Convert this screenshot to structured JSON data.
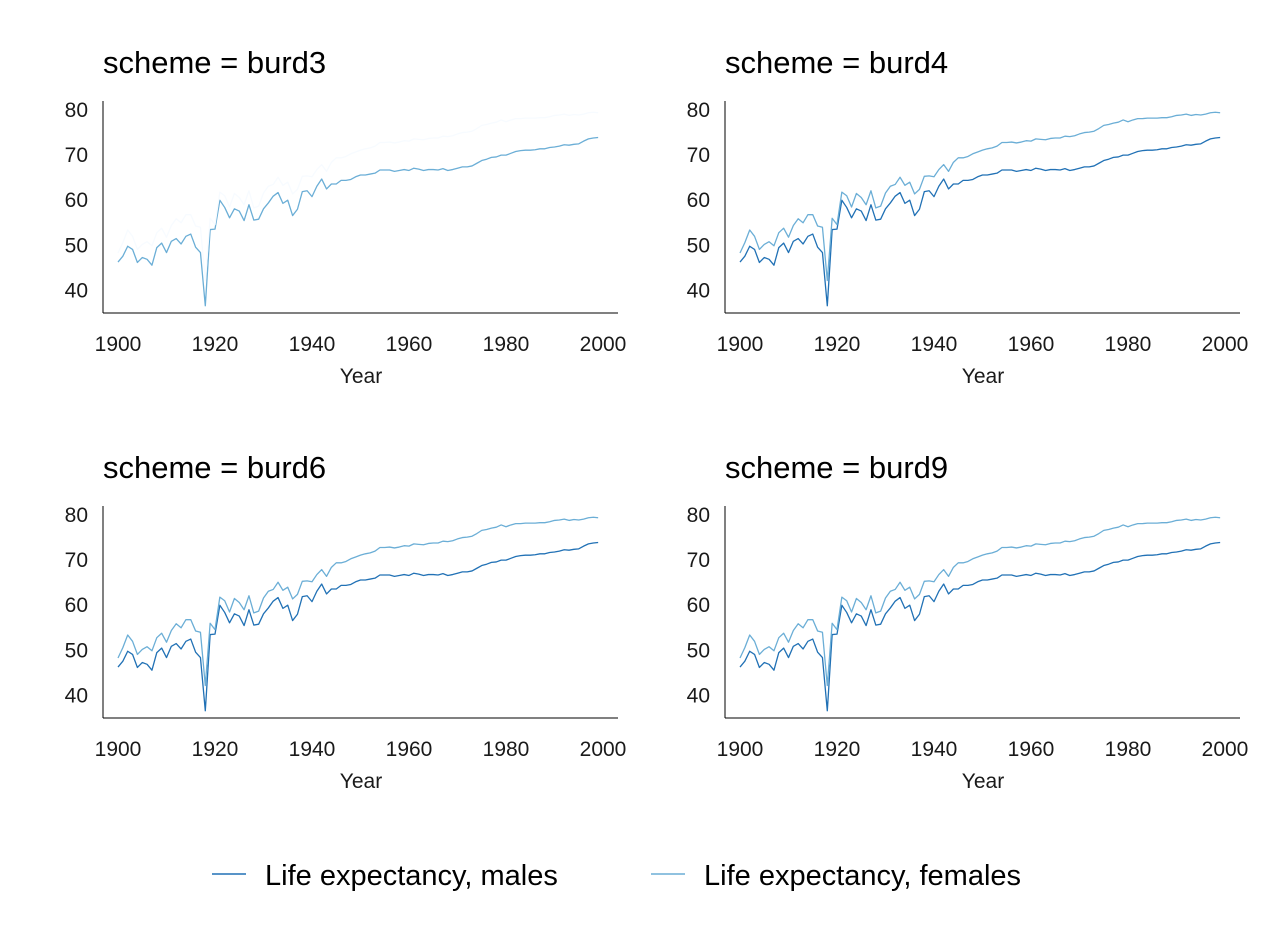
{
  "chart_data": [
    {
      "type": "line",
      "title": "scheme = burd3",
      "xlabel": "Year",
      "ylabel": "",
      "xlim": [
        1900,
        2000
      ],
      "ylim": [
        35,
        82
      ],
      "xticks": [
        1900,
        1920,
        1940,
        1960,
        1980,
        2000
      ],
      "yticks": [
        40,
        50,
        60,
        70,
        80
      ],
      "series_colors": [
        "#6baed6",
        "#f7fbff"
      ]
    },
    {
      "type": "line",
      "title": "scheme = burd4",
      "xlabel": "Year",
      "ylabel": "",
      "xlim": [
        1900,
        2000
      ],
      "ylim": [
        35,
        82
      ],
      "xticks": [
        1900,
        1920,
        1940,
        1960,
        1980,
        2000
      ],
      "yticks": [
        40,
        50,
        60,
        70,
        80
      ],
      "series_colors": [
        "#2171b5",
        "#6baed6"
      ]
    },
    {
      "type": "line",
      "title": "scheme = burd6",
      "xlabel": "Year",
      "ylabel": "",
      "xlim": [
        1900,
        2000
      ],
      "ylim": [
        35,
        82
      ],
      "xticks": [
        1900,
        1920,
        1940,
        1960,
        1980,
        2000
      ],
      "yticks": [
        40,
        50,
        60,
        70,
        80
      ],
      "series_colors": [
        "#2171b5",
        "#6baed6"
      ]
    },
    {
      "type": "line",
      "title": "scheme = burd9",
      "xlabel": "Year",
      "ylabel": "",
      "xlim": [
        1900,
        2000
      ],
      "ylim": [
        35,
        82
      ],
      "xticks": [
        1900,
        1920,
        1940,
        1960,
        1980,
        2000
      ],
      "yticks": [
        40,
        50,
        60,
        70,
        80
      ],
      "series_colors": [
        "#2171b5",
        "#6baed6"
      ]
    }
  ],
  "shared_series": {
    "x": [
      1900,
      1901,
      1902,
      1903,
      1904,
      1905,
      1906,
      1907,
      1908,
      1909,
      1910,
      1911,
      1912,
      1913,
      1914,
      1915,
      1916,
      1917,
      1918,
      1919,
      1920,
      1921,
      1922,
      1923,
      1924,
      1925,
      1926,
      1927,
      1928,
      1929,
      1930,
      1931,
      1932,
      1933,
      1934,
      1935,
      1936,
      1937,
      1938,
      1939,
      1940,
      1941,
      1942,
      1943,
      1944,
      1945,
      1946,
      1947,
      1948,
      1949,
      1950,
      1951,
      1952,
      1953,
      1954,
      1955,
      1956,
      1957,
      1958,
      1959,
      1960,
      1961,
      1962,
      1963,
      1964,
      1965,
      1966,
      1967,
      1968,
      1969,
      1970,
      1971,
      1972,
      1973,
      1974,
      1975,
      1976,
      1977,
      1978,
      1979,
      1980,
      1981,
      1982,
      1983,
      1984,
      1985,
      1986,
      1987,
      1988,
      1989,
      1990,
      1991,
      1992,
      1993,
      1994,
      1995,
      1996,
      1997,
      1998,
      1999
    ],
    "series": [
      {
        "name": "Life expectancy, males",
        "values": [
          46.3,
          47.6,
          49.8,
          49.1,
          46.2,
          47.3,
          46.9,
          45.6,
          49.5,
          50.5,
          48.4,
          50.9,
          51.5,
          50.3,
          52.0,
          52.5,
          49.6,
          48.4,
          36.6,
          53.5,
          53.6,
          60.0,
          58.4,
          56.1,
          58.1,
          57.6,
          55.5,
          59.0,
          55.6,
          55.8,
          58.1,
          59.4,
          60.9,
          61.7,
          59.3,
          60.0,
          56.6,
          58.0,
          61.9,
          62.1,
          60.8,
          63.1,
          64.7,
          62.5,
          63.6,
          63.6,
          64.4,
          64.4,
          64.6,
          65.2,
          65.6,
          65.6,
          65.8,
          66.0,
          66.7,
          66.7,
          66.7,
          66.4,
          66.6,
          66.8,
          66.6,
          67.1,
          66.9,
          66.6,
          66.8,
          66.8,
          66.7,
          67.0,
          66.6,
          66.8,
          67.1,
          67.4,
          67.4,
          67.6,
          68.2,
          68.8,
          69.1,
          69.5,
          69.6,
          70.0,
          70.0,
          70.4,
          70.8,
          71.0,
          71.1,
          71.1,
          71.2,
          71.4,
          71.4,
          71.7,
          71.8,
          72.0,
          72.3,
          72.2,
          72.4,
          72.5,
          73.1,
          73.6,
          73.8,
          73.9
        ]
      },
      {
        "name": "Life expectancy, females",
        "values": [
          48.3,
          50.6,
          53.4,
          52.0,
          49.1,
          50.2,
          50.8,
          49.9,
          52.8,
          53.8,
          51.8,
          54.4,
          55.9,
          55.0,
          56.8,
          56.8,
          54.3,
          54.0,
          42.2,
          56.0,
          54.6,
          61.8,
          61.0,
          58.5,
          61.5,
          60.6,
          59.0,
          62.1,
          58.3,
          58.7,
          61.6,
          63.1,
          63.5,
          65.1,
          63.3,
          64.0,
          61.4,
          62.4,
          65.3,
          65.4,
          65.2,
          66.8,
          67.9,
          66.4,
          68.4,
          69.4,
          69.4,
          69.7,
          70.3,
          70.7,
          71.1,
          71.4,
          71.6,
          72.0,
          72.8,
          72.8,
          72.9,
          72.7,
          72.9,
          73.2,
          73.1,
          73.6,
          73.5,
          73.4,
          73.7,
          73.8,
          73.8,
          74.2,
          74.1,
          74.3,
          74.7,
          75.0,
          75.1,
          75.3,
          75.9,
          76.6,
          76.8,
          77.1,
          77.3,
          77.8,
          77.4,
          77.8,
          78.1,
          78.1,
          78.2,
          78.2,
          78.2,
          78.3,
          78.3,
          78.5,
          78.8,
          78.9,
          79.1,
          78.8,
          79.0,
          78.9,
          79.1,
          79.4,
          79.5,
          79.4
        ]
      }
    ]
  },
  "legend": {
    "items": [
      {
        "label": "Life expectancy, males",
        "color": "#2171b5"
      },
      {
        "label": "Life expectancy, females",
        "color": "#6baed6"
      }
    ],
    "placement": "bottom"
  }
}
